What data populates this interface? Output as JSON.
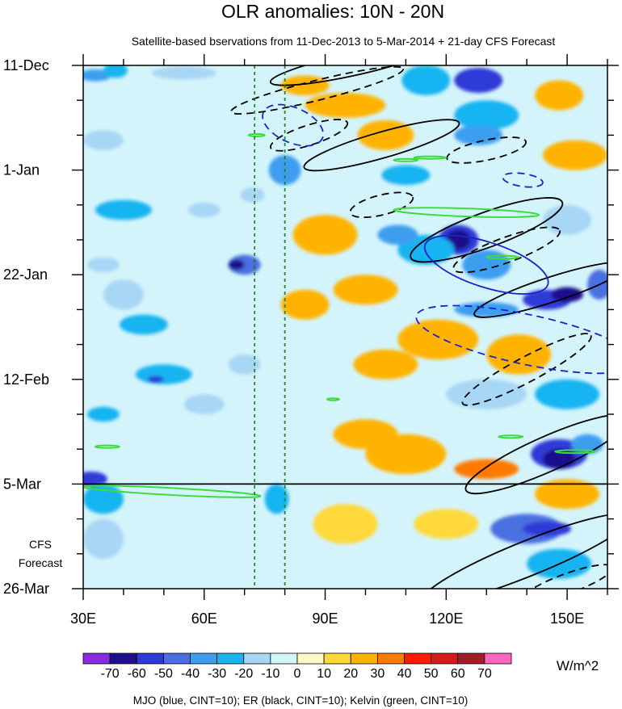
{
  "chart_data": {
    "type": "heatmap",
    "title": "OLR anomalies: 10N - 20N",
    "subtitle": "Satellite-based bservations from 11-Dec-2013 to 5-Mar-2014 + 21-day CFS Forecast",
    "x_axis": {
      "range": [
        30,
        160
      ],
      "ticks": [
        {
          "value": 30,
          "label": "30E"
        },
        {
          "value": 60,
          "label": "60E"
        },
        {
          "value": 90,
          "label": "90E"
        },
        {
          "value": 120,
          "label": "120E"
        },
        {
          "value": 150,
          "label": "150E"
        }
      ]
    },
    "y_axis": {
      "range_days": [
        0,
        105
      ],
      "ticks": [
        {
          "day": 0,
          "label": "11-Dec"
        },
        {
          "day": 21,
          "label": "1-Jan"
        },
        {
          "day": 42,
          "label": "22-Jan"
        },
        {
          "day": 63,
          "label": "12-Feb"
        },
        {
          "day": 84,
          "label": "5-Mar"
        },
        {
          "day": 105,
          "label": "26-Mar"
        }
      ]
    },
    "forecast_label_lines": [
      "CFS",
      "Forecast"
    ],
    "forecast_start_day": 84,
    "reference_lines_lon": [
      72.5,
      80
    ],
    "colorbar": {
      "unit": "W/m^2",
      "levels": [
        -70,
        -60,
        -50,
        -40,
        -30,
        -20,
        -10,
        0,
        10,
        20,
        30,
        40,
        50,
        60,
        70
      ],
      "labels": [
        "-70",
        "-60",
        "-50",
        "-40",
        "-30",
        "-20",
        "-10",
        "0",
        "10",
        "20",
        "30",
        "40",
        "50",
        "60",
        "70"
      ],
      "colors": [
        "#8a2be2",
        "#1e0f8c",
        "#2d3ad6",
        "#4a6fe0",
        "#3d9ef0",
        "#19b4f0",
        "#a8d6f5",
        "#d4f4fb",
        "#fff9c8",
        "#ffd93a",
        "#ffb300",
        "#ff7a00",
        "#ff1a00",
        "#d41a1a",
        "#a01e28",
        "#ff66c4"
      ]
    },
    "footer": "MJO (blue, CINT=10); ER (black, CINT=10); Kelvin (green, CINT=10)",
    "anomaly_blobs": [
      {
        "lon": 33,
        "day": 2,
        "rx": 4,
        "ry": 1.2,
        "v": -35
      },
      {
        "lon": 38,
        "day": 1,
        "rx": 3,
        "ry": 1.5,
        "v": -25
      },
      {
        "lon": 55,
        "day": 1.5,
        "rx": 8,
        "ry": 1.3,
        "v": -20
      },
      {
        "lon": 35,
        "day": 15,
        "rx": 5,
        "ry": 2,
        "v": -15
      },
      {
        "lon": 95,
        "day": 8,
        "rx": 10,
        "ry": 2.5,
        "v": 20
      },
      {
        "lon": 105,
        "day": 14,
        "rx": 7,
        "ry": 3,
        "v": 20
      },
      {
        "lon": 85,
        "day": 4,
        "rx": 6,
        "ry": 2,
        "v": 25
      },
      {
        "lon": 115,
        "day": 3,
        "rx": 6,
        "ry": 3,
        "v": -30
      },
      {
        "lon": 128,
        "day": 3,
        "rx": 6,
        "ry": 2.5,
        "v": -55
      },
      {
        "lon": 130,
        "day": 10,
        "rx": 8,
        "ry": 3,
        "v": -30
      },
      {
        "lon": 128,
        "day": 14,
        "rx": 6,
        "ry": 2,
        "v": -40
      },
      {
        "lon": 148,
        "day": 6,
        "rx": 6,
        "ry": 3,
        "v": 20
      },
      {
        "lon": 152,
        "day": 18,
        "rx": 8,
        "ry": 3,
        "v": 25
      },
      {
        "lon": 110,
        "day": 22,
        "rx": 6,
        "ry": 2,
        "v": -25
      },
      {
        "lon": 80,
        "day": 21,
        "rx": 4,
        "ry": 3,
        "v": -40
      },
      {
        "lon": 72,
        "day": 26,
        "rx": 3,
        "ry": 1.5,
        "v": -20
      },
      {
        "lon": 40,
        "day": 29,
        "rx": 7,
        "ry": 2,
        "v": -30
      },
      {
        "lon": 60,
        "day": 29,
        "rx": 4,
        "ry": 1.5,
        "v": -15
      },
      {
        "lon": 70,
        "day": 40,
        "rx": 4,
        "ry": 2,
        "v": -45
      },
      {
        "lon": 68,
        "day": 40,
        "rx": 2,
        "ry": 1,
        "v": -65
      },
      {
        "lon": 123,
        "day": 35,
        "rx": 5,
        "ry": 3,
        "v": -55
      },
      {
        "lon": 123,
        "day": 35,
        "rx": 3,
        "ry": 2,
        "v": -70
      },
      {
        "lon": 115,
        "day": 37,
        "rx": 7,
        "ry": 3,
        "v": -30
      },
      {
        "lon": 108,
        "day": 34,
        "rx": 5,
        "ry": 2,
        "v": -35
      },
      {
        "lon": 130,
        "day": 40,
        "rx": 6,
        "ry": 3,
        "v": -40
      },
      {
        "lon": 145,
        "day": 47,
        "rx": 6,
        "ry": 2,
        "v": -60
      },
      {
        "lon": 150,
        "day": 46,
        "rx": 4,
        "ry": 1.5,
        "v": -70
      },
      {
        "lon": 130,
        "day": 49,
        "rx": 8,
        "ry": 1.5,
        "v": -40
      },
      {
        "lon": 158,
        "day": 44,
        "rx": 3,
        "ry": 3,
        "v": -50
      },
      {
        "lon": 150,
        "day": 31,
        "rx": 6,
        "ry": 3,
        "v": -20
      },
      {
        "lon": 90,
        "day": 34,
        "rx": 8,
        "ry": 4,
        "v": 20
      },
      {
        "lon": 100,
        "day": 45,
        "rx": 8,
        "ry": 3,
        "v": 20
      },
      {
        "lon": 85,
        "day": 48,
        "rx": 6,
        "ry": 3,
        "v": 25
      },
      {
        "lon": 40,
        "day": 46,
        "rx": 5,
        "ry": 3,
        "v": -15
      },
      {
        "lon": 45,
        "day": 52,
        "rx": 6,
        "ry": 2,
        "v": -25
      },
      {
        "lon": 35,
        "day": 40,
        "rx": 4,
        "ry": 1.5,
        "v": -20
      },
      {
        "lon": 118,
        "day": 55,
        "rx": 10,
        "ry": 4,
        "v": 25
      },
      {
        "lon": 138,
        "day": 58,
        "rx": 8,
        "ry": 4,
        "v": 20
      },
      {
        "lon": 105,
        "day": 60,
        "rx": 8,
        "ry": 3,
        "v": 20
      },
      {
        "lon": 50,
        "day": 62,
        "rx": 7,
        "ry": 2,
        "v": -25
      },
      {
        "lon": 48,
        "day": 63,
        "rx": 2,
        "ry": 0.7,
        "v": -60
      },
      {
        "lon": 70,
        "day": 60,
        "rx": 4,
        "ry": 2,
        "v": -15
      },
      {
        "lon": 60,
        "day": 68,
        "rx": 5,
        "ry": 2,
        "v": -20
      },
      {
        "lon": 35,
        "day": 70,
        "rx": 4,
        "ry": 1.5,
        "v": -25
      },
      {
        "lon": 130,
        "day": 66,
        "rx": 10,
        "ry": 3,
        "v": -20
      },
      {
        "lon": 150,
        "day": 66,
        "rx": 8,
        "ry": 3,
        "v": -25
      },
      {
        "lon": 148,
        "day": 78,
        "rx": 7,
        "ry": 3,
        "v": -55
      },
      {
        "lon": 148,
        "day": 79,
        "rx": 4,
        "ry": 2,
        "v": -70
      },
      {
        "lon": 155,
        "day": 76,
        "rx": 4,
        "ry": 2,
        "v": -40
      },
      {
        "lon": 130,
        "day": 81,
        "rx": 8,
        "ry": 2,
        "v": 30
      },
      {
        "lon": 110,
        "day": 78,
        "rx": 10,
        "ry": 4,
        "v": 20
      },
      {
        "lon": 100,
        "day": 74,
        "rx": 8,
        "ry": 3,
        "v": 25
      },
      {
        "lon": 32,
        "day": 83,
        "rx": 4,
        "ry": 1.5,
        "v": -60
      },
      {
        "lon": 35,
        "day": 87,
        "rx": 5,
        "ry": 3,
        "v": -30
      },
      {
        "lon": 35,
        "day": 95,
        "rx": 5,
        "ry": 4,
        "v": -20
      },
      {
        "lon": 78,
        "day": 87,
        "rx": 3,
        "ry": 3,
        "v": -25
      },
      {
        "lon": 140,
        "day": 93,
        "rx": 9,
        "ry": 3,
        "v": -45
      },
      {
        "lon": 145,
        "day": 93,
        "rx": 6,
        "ry": 1.5,
        "v": -60
      },
      {
        "lon": 148,
        "day": 100,
        "rx": 8,
        "ry": 3,
        "v": -30
      },
      {
        "lon": 120,
        "day": 92,
        "rx": 8,
        "ry": 3,
        "v": 15
      },
      {
        "lon": 150,
        "day": 86,
        "rx": 8,
        "ry": 3,
        "v": 20
      },
      {
        "lon": 95,
        "day": 92,
        "rx": 8,
        "ry": 4,
        "v": 10
      }
    ],
    "contours": [
      {
        "family": "ER",
        "style": "solid",
        "lon": 96,
        "day": 0,
        "rx": 20,
        "ry": 2.2,
        "angle": -12
      },
      {
        "family": "ER",
        "style": "dashed",
        "lon": 88,
        "day": 5,
        "rx": 22,
        "ry": 2.0,
        "angle": -14
      },
      {
        "family": "ER",
        "style": "dashed",
        "lon": 86,
        "day": 14,
        "rx": 10,
        "ry": 2.0,
        "angle": -18
      },
      {
        "family": "ER",
        "style": "solid",
        "lon": 104,
        "day": 16,
        "rx": 20,
        "ry": 2.6,
        "angle": -16
      },
      {
        "family": "ER",
        "style": "dashed",
        "lon": 130,
        "day": 17,
        "rx": 10,
        "ry": 2.0,
        "angle": -12
      },
      {
        "family": "ER",
        "style": "dashed",
        "lon": 104,
        "day": 28,
        "rx": 8,
        "ry": 2.0,
        "angle": -14
      },
      {
        "family": "ER",
        "style": "solid",
        "lon": 130,
        "day": 33,
        "rx": 20,
        "ry": 3.5,
        "angle": -20
      },
      {
        "family": "ER",
        "style": "dashed",
        "lon": 135,
        "day": 37,
        "rx": 14,
        "ry": 2.5,
        "angle": -20
      },
      {
        "family": "ER",
        "style": "solid",
        "lon": 146,
        "day": 45,
        "rx": 20,
        "ry": 2.5,
        "angle": -18
      },
      {
        "family": "ER",
        "style": "dashed",
        "lon": 140,
        "day": 61,
        "rx": 18,
        "ry": 2.5,
        "angle": -28
      },
      {
        "family": "ER",
        "style": "solid",
        "lon": 145,
        "day": 78,
        "rx": 22,
        "ry": 3.5,
        "angle": -24
      },
      {
        "family": "ER",
        "style": "solid",
        "lon": 140,
        "day": 99,
        "rx": 28,
        "ry": 3.5,
        "angle": -22
      },
      {
        "family": "ER",
        "style": "dashed",
        "lon": 150,
        "day": 104,
        "rx": 12,
        "ry": 2.0,
        "angle": -20
      },
      {
        "family": "MJO",
        "style": "dashed",
        "lon": 82,
        "day": 12,
        "rx": 8,
        "ry": 3.5,
        "angle": 24
      },
      {
        "family": "MJO",
        "style": "dashed",
        "lon": 139,
        "day": 23,
        "rx": 5,
        "ry": 1.3,
        "angle": 8
      },
      {
        "family": "MJO",
        "style": "solid",
        "lon": 130,
        "day": 40,
        "rx": 16,
        "ry": 4.5,
        "angle": 18
      },
      {
        "family": "MJO",
        "style": "dashed",
        "lon": 140,
        "day": 55,
        "rx": 28,
        "ry": 5,
        "angle": 12
      },
      {
        "family": "Kelvin",
        "style": "solid",
        "lon": 125,
        "day": 29.5,
        "rx": 18,
        "ry": 0.8,
        "angle": 2
      },
      {
        "family": "Kelvin",
        "style": "solid",
        "lon": 52,
        "day": 85.5,
        "rx": 22,
        "ry": 0.7,
        "angle": 3
      },
      {
        "family": "Kelvin",
        "style": "solid",
        "lon": 134,
        "day": 38.5,
        "rx": 4,
        "ry": 0.3,
        "angle": 0
      },
      {
        "family": "Kelvin",
        "style": "solid",
        "lon": 152,
        "day": 77.5,
        "rx": 5,
        "ry": 0.3,
        "angle": 0
      },
      {
        "family": "Kelvin",
        "style": "solid",
        "lon": 73,
        "day": 14,
        "rx": 2,
        "ry": 0.25,
        "angle": 0
      },
      {
        "family": "Kelvin",
        "style": "solid",
        "lon": 116,
        "day": 18.5,
        "rx": 4,
        "ry": 0.25,
        "angle": 0
      },
      {
        "family": "Kelvin",
        "style": "solid",
        "lon": 110,
        "day": 19,
        "rx": 3,
        "ry": 0.25,
        "angle": 0
      },
      {
        "family": "Kelvin",
        "style": "solid",
        "lon": 92,
        "day": 67,
        "rx": 1.5,
        "ry": 0.2,
        "angle": 0
      },
      {
        "family": "Kelvin",
        "style": "solid",
        "lon": 36,
        "day": 76.5,
        "rx": 3,
        "ry": 0.25,
        "angle": 0
      },
      {
        "family": "Kelvin",
        "style": "solid",
        "lon": 136,
        "day": 74.5,
        "rx": 3,
        "ry": 0.25,
        "angle": 0
      }
    ]
  }
}
